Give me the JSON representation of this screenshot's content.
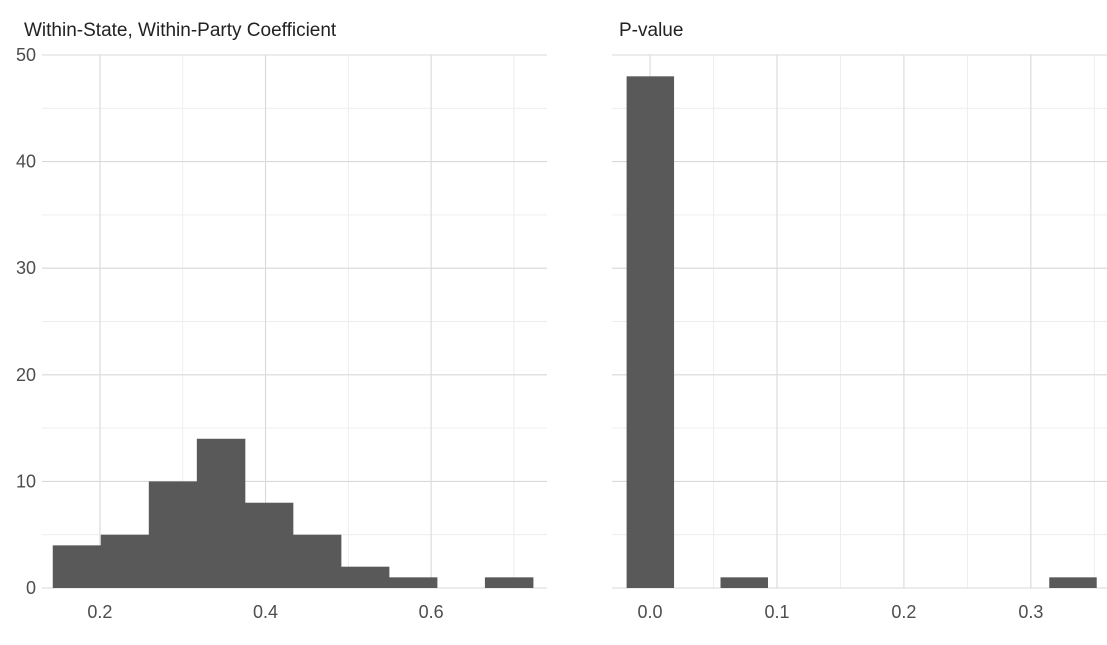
{
  "chart_data": [
    {
      "type": "bar",
      "title": "Within-State, Within-Party Coefficient",
      "xlabel": "",
      "ylabel": "",
      "xlim": [
        0.13,
        0.74
      ],
      "ylim": [
        0,
        50
      ],
      "x_ticks": [
        0.2,
        0.4,
        0.6
      ],
      "x_tick_labels": [
        "0.2",
        "0.4",
        "0.6"
      ],
      "x_minor_ticks": [
        0.3,
        0.5,
        0.7
      ],
      "y_ticks": [
        0,
        10,
        20,
        30,
        40,
        50
      ],
      "y_tick_labels": [
        "0",
        "10",
        "20",
        "30",
        "40",
        "50"
      ],
      "grid": true,
      "bins": [
        {
          "x0": 0.143,
          "x1": 0.201,
          "value": 4
        },
        {
          "x0": 0.201,
          "x1": 0.259,
          "value": 5
        },
        {
          "x0": 0.259,
          "x1": 0.317,
          "value": 10
        },
        {
          "x0": 0.317,
          "x1": 0.375,
          "value": 14
        },
        {
          "x0": 0.375,
          "x1": 0.433,
          "value": 8
        },
        {
          "x0": 0.433,
          "x1": 0.491,
          "value": 5
        },
        {
          "x0": 0.491,
          "x1": 0.549,
          "value": 2
        },
        {
          "x0": 0.549,
          "x1": 0.607,
          "value": 1
        },
        {
          "x0": 0.607,
          "x1": 0.665,
          "value": 0
        },
        {
          "x0": 0.665,
          "x1": 0.723,
          "value": 1
        }
      ]
    },
    {
      "type": "bar",
      "title": "P-value",
      "xlabel": "",
      "ylabel": "",
      "xlim": [
        -0.03,
        0.36
      ],
      "ylim": [
        0,
        50
      ],
      "x_ticks": [
        0.0,
        0.1,
        0.2,
        0.3
      ],
      "x_tick_labels": [
        "0.0",
        "0.1",
        "0.2",
        "0.3"
      ],
      "x_minor_ticks": [
        0.05,
        0.15,
        0.25,
        0.35
      ],
      "y_ticks": [
        0,
        10,
        20,
        30,
        40,
        50
      ],
      "grid": true,
      "bins": [
        {
          "x0": -0.0185,
          "x1": 0.0185,
          "value": 48
        },
        {
          "x0": 0.0185,
          "x1": 0.0555,
          "value": 0
        },
        {
          "x0": 0.0555,
          "x1": 0.0925,
          "value": 1
        },
        {
          "x0": 0.0925,
          "x1": 0.1295,
          "value": 0
        },
        {
          "x0": 0.1295,
          "x1": 0.1665,
          "value": 0
        },
        {
          "x0": 0.1665,
          "x1": 0.2035,
          "value": 0
        },
        {
          "x0": 0.2035,
          "x1": 0.2405,
          "value": 0
        },
        {
          "x0": 0.2405,
          "x1": 0.2775,
          "value": 0
        },
        {
          "x0": 0.2775,
          "x1": 0.3145,
          "value": 0
        },
        {
          "x0": 0.3145,
          "x1": 0.3515,
          "value": 1
        }
      ]
    }
  ]
}
